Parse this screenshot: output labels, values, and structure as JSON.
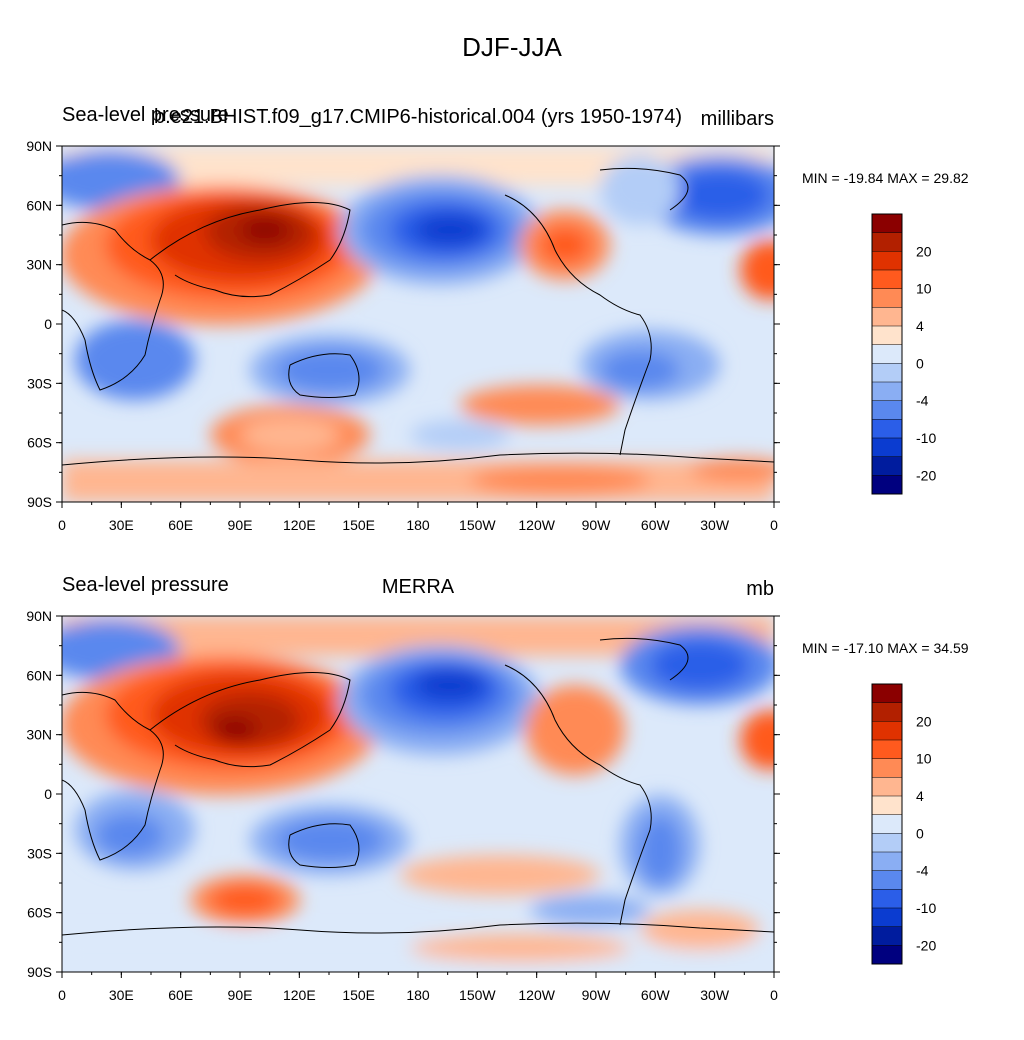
{
  "title": "DJF-JJA",
  "panels": [
    {
      "left_label": "Sea-level pressure",
      "center_label": "b.e21.BHIST.f09_g17.CMIP6-historical.004 (yrs 1950-1974)",
      "right_label": "millibars",
      "minmax": "MIN = -19.84 MAX =  29.82"
    },
    {
      "left_label": "Sea-level pressure",
      "center_label": "MERRA",
      "right_label": "mb",
      "minmax": "MIN = -17.10 MAX =  34.59"
    }
  ],
  "lat_ticks": [
    "90N",
    "60N",
    "30N",
    "0",
    "30S",
    "60S",
    "90S"
  ],
  "lon_ticks": [
    "0",
    "30E",
    "60E",
    "90E",
    "120E",
    "150E",
    "180",
    "150W",
    "120W",
    "90W",
    "60W",
    "30W",
    "0"
  ],
  "colorbar": {
    "colors": [
      "#8b0000",
      "#b22000",
      "#e03200",
      "#ff5a1e",
      "#ff8a55",
      "#ffb690",
      "#ffe3cc",
      "#dce9fa",
      "#b3cdf7",
      "#8aaef3",
      "#5a88ee",
      "#2b5ee8",
      "#0b3cd0",
      "#001c9e",
      "#00007f"
    ],
    "labels": [
      {
        "text": "20",
        "boundary": 2
      },
      {
        "text": "10",
        "boundary": 4
      },
      {
        "text": "4",
        "boundary": 6
      },
      {
        "text": "0",
        "boundary": 8
      },
      {
        "text": "-4",
        "boundary": 10
      },
      {
        "text": "-10",
        "boundary": 12
      },
      {
        "text": "-20",
        "boundary": 14
      }
    ]
  }
}
